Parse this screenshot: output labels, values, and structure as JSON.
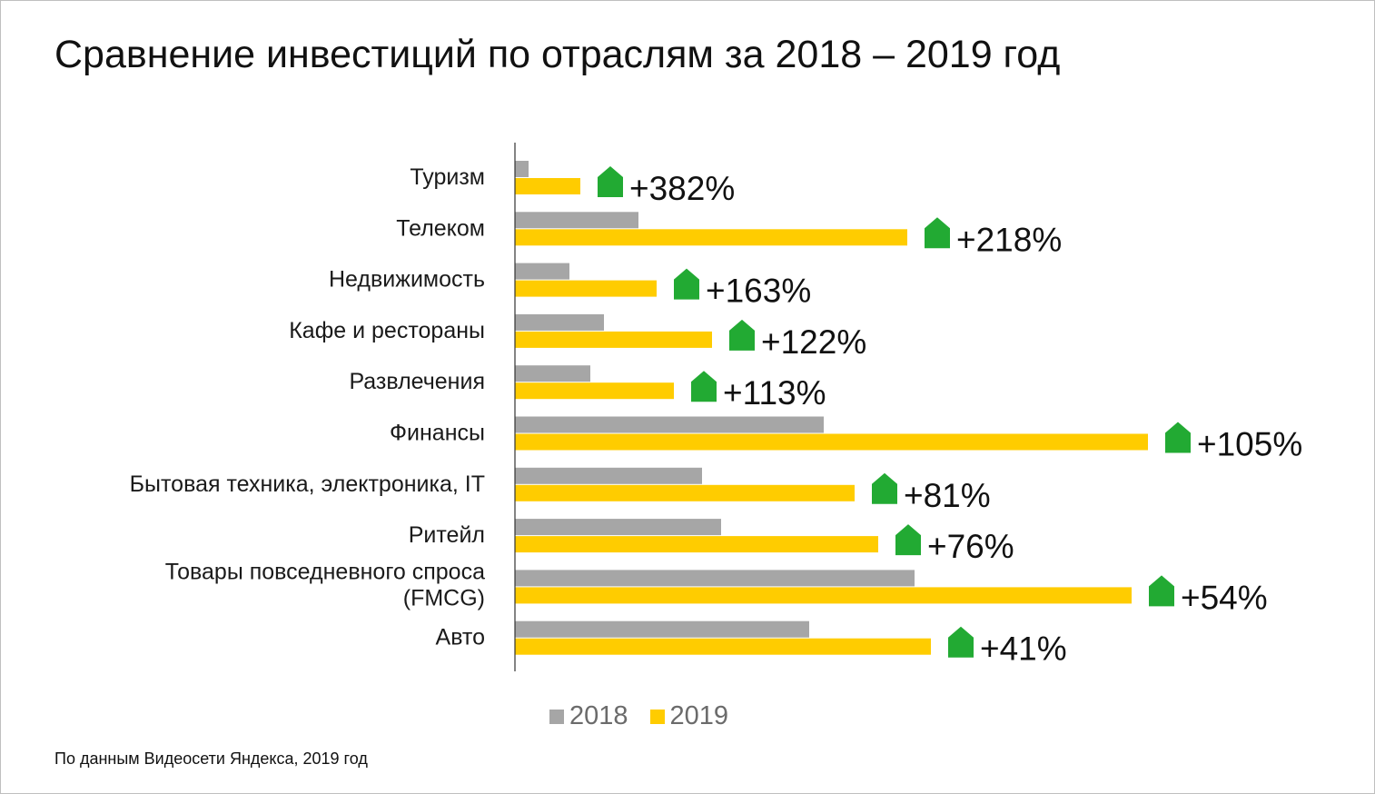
{
  "title": "Сравнение инвестиций по отраслям за 2018 – 2019 год",
  "source": "По данным Видеосети Яндекса, 2019 год",
  "colors": {
    "series_2018": "#a6a6a6",
    "series_2019": "#ffcc00",
    "growth_icon": "#22aa33",
    "axis": "#333333"
  },
  "icons": {
    "growth": "house-up-arrow-icon"
  },
  "legend": [
    {
      "label": "2018",
      "color": "#a6a6a6"
    },
    {
      "label": "2019",
      "color": "#ffcc00"
    }
  ],
  "chart_data": {
    "type": "bar",
    "orientation": "horizontal",
    "categories": [
      "Туризм",
      "Телеком",
      "Недвижимость",
      "Кафе и рестораны",
      "Развлечения",
      "Финансы",
      "Бытовая техника, электроника, IT",
      "Ритейл",
      "Товары повседневного спроса (FMCG)",
      "Авто"
    ],
    "series": [
      {
        "name": "2018",
        "values": [
          15,
          136,
          60,
          98,
          83,
          340,
          206,
          227,
          440,
          324
        ]
      },
      {
        "name": "2019",
        "values": [
          72,
          432,
          156,
          217,
          175,
          697,
          374,
          400,
          679,
          458
        ]
      }
    ],
    "growth_labels": [
      "+382%",
      "+218%",
      "+163%",
      "+122%",
      "+113%",
      "+105%",
      "+81%",
      "+76%",
      "+54%",
      "+41%"
    ],
    "xlim": [
      0,
      700
    ],
    "grid": false,
    "legend_position": "bottom"
  }
}
